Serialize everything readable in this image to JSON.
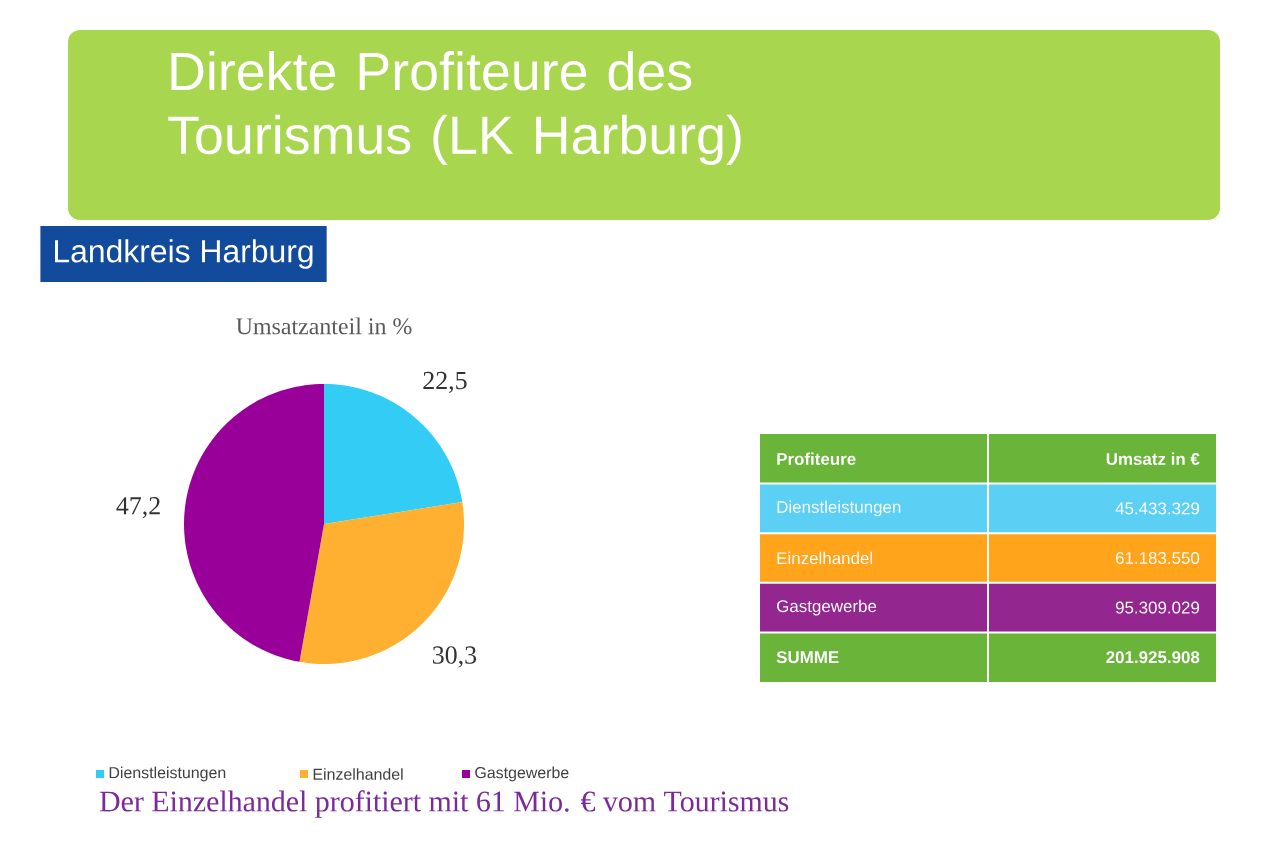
{
  "chart_data": [
    {
      "type": "pie",
      "title": "Direkte Profiteure des Tourismus (LK Harburg)",
      "subtitle": "Landkreis Harburg",
      "categories": [
        "Dienstleistungen",
        "Einzelhandel",
        "Gastgewerbe"
      ],
      "values": [
        22.5,
        30.3,
        47.2
      ],
      "value_labels": [
        "22,5",
        "30,3",
        "47,2"
      ],
      "colors": [
        "#33ccf5",
        "#ffb030",
        "#990099"
      ],
      "legend": "bottom",
      "annotations": [
        "Umsatzanteil in %",
        "Der Einzelhandel profitiert mit 61 Mio. € vom Tourismus"
      ]
    },
    {
      "type": "other",
      "xlabel": "Profiteure",
      "ylabel": "Umsatz in €",
      "categories": [
        "Dienstleistungen",
        "Einzelhandel",
        "Gastgewerbe",
        "SUMME"
      ],
      "value_labels": [
        "45.433.329",
        "61.183.550",
        "95.309.029",
        "201.925.908"
      ],
      "colors": [
        "#5ccff5",
        "#ffa41b",
        "#93278f",
        "#6ab43a"
      ]
    }
  ]
}
